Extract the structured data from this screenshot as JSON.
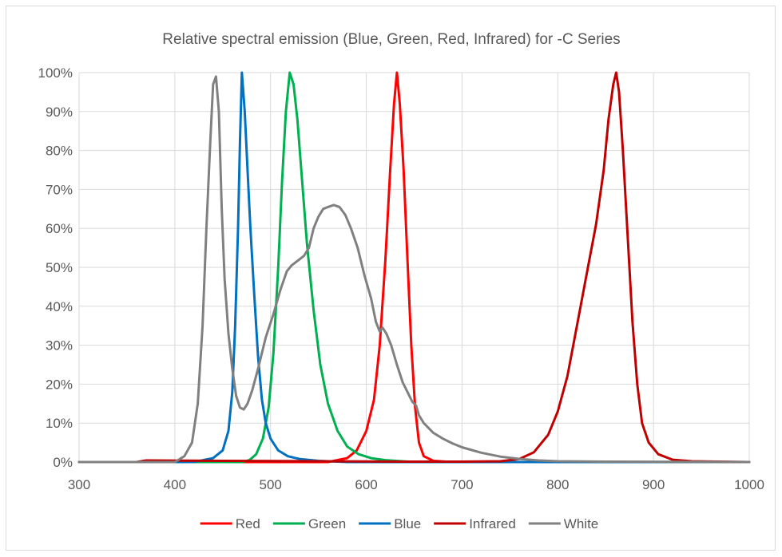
{
  "chart_data": {
    "type": "line",
    "title": "Relative spectral emission (Blue, Green, Red, Infrared) for -C Series",
    "xlabel": "",
    "ylabel": "",
    "xlim": [
      300,
      1000
    ],
    "ylim": [
      0,
      100
    ],
    "x_ticks": [
      "300",
      "400",
      "500",
      "600",
      "700",
      "800",
      "900",
      "1000"
    ],
    "y_ticks": [
      "0%",
      "10%",
      "20%",
      "30%",
      "40%",
      "50%",
      "60%",
      "70%",
      "80%",
      "90%",
      "100%"
    ],
    "grid": "vertical-and-horizontal",
    "legend_position": "bottom",
    "series": [
      {
        "name": "Red",
        "color": "#ff0000",
        "points": [
          [
            300,
            0
          ],
          [
            560,
            0
          ],
          [
            580,
            1
          ],
          [
            590,
            3
          ],
          [
            600,
            8
          ],
          [
            608,
            16
          ],
          [
            614,
            30
          ],
          [
            620,
            52
          ],
          [
            625,
            75
          ],
          [
            629,
            92
          ],
          [
            632,
            100
          ],
          [
            635,
            92
          ],
          [
            639,
            75
          ],
          [
            643,
            52
          ],
          [
            647,
            30
          ],
          [
            651,
            14
          ],
          [
            655,
            5
          ],
          [
            660,
            1.5
          ],
          [
            670,
            0.3
          ],
          [
            690,
            0
          ],
          [
            1000,
            0
          ]
        ]
      },
      {
        "name": "Green",
        "color": "#00b050",
        "points": [
          [
            300,
            0
          ],
          [
            470,
            0
          ],
          [
            478,
            0.5
          ],
          [
            485,
            2
          ],
          [
            492,
            6
          ],
          [
            498,
            14
          ],
          [
            503,
            28
          ],
          [
            508,
            50
          ],
          [
            512,
            72
          ],
          [
            516,
            90
          ],
          [
            520,
            100
          ],
          [
            524,
            97
          ],
          [
            528,
            88
          ],
          [
            533,
            72
          ],
          [
            538,
            56
          ],
          [
            545,
            39
          ],
          [
            552,
            25
          ],
          [
            560,
            15
          ],
          [
            570,
            8
          ],
          [
            580,
            4
          ],
          [
            592,
            2
          ],
          [
            605,
            1
          ],
          [
            620,
            0.5
          ],
          [
            650,
            0
          ],
          [
            1000,
            0
          ]
        ]
      },
      {
        "name": "Blue",
        "color": "#0070c0",
        "points": [
          [
            300,
            0
          ],
          [
            420,
            0
          ],
          [
            440,
            1
          ],
          [
            450,
            3
          ],
          [
            456,
            8
          ],
          [
            460,
            18
          ],
          [
            463,
            35
          ],
          [
            466,
            60
          ],
          [
            468,
            82
          ],
          [
            470,
            100
          ],
          [
            473,
            90
          ],
          [
            476,
            75
          ],
          [
            479,
            60
          ],
          [
            483,
            43
          ],
          [
            487,
            27
          ],
          [
            491,
            16
          ],
          [
            495,
            10
          ],
          [
            500,
            6
          ],
          [
            508,
            3
          ],
          [
            518,
            1.5
          ],
          [
            530,
            0.8
          ],
          [
            550,
            0.3
          ],
          [
            580,
            0
          ],
          [
            1000,
            0
          ]
        ]
      },
      {
        "name": "Infrared",
        "color": "#c00000",
        "points": [
          [
            300,
            0
          ],
          [
            360,
            0
          ],
          [
            370,
            0.4
          ],
          [
            450,
            0.3
          ],
          [
            550,
            0.2
          ],
          [
            650,
            0.1
          ],
          [
            700,
            0.1
          ],
          [
            740,
            0.2
          ],
          [
            760,
            0.8
          ],
          [
            775,
            2.5
          ],
          [
            790,
            7
          ],
          [
            800,
            13
          ],
          [
            810,
            22
          ],
          [
            820,
            35
          ],
          [
            830,
            48
          ],
          [
            840,
            61
          ],
          [
            848,
            75
          ],
          [
            853,
            88
          ],
          [
            858,
            97
          ],
          [
            861,
            100
          ],
          [
            864,
            95
          ],
          [
            868,
            80
          ],
          [
            873,
            58
          ],
          [
            878,
            36
          ],
          [
            883,
            20
          ],
          [
            888,
            10
          ],
          [
            895,
            5
          ],
          [
            905,
            2
          ],
          [
            920,
            0.6
          ],
          [
            940,
            0.2
          ],
          [
            1000,
            0
          ]
        ]
      },
      {
        "name": "White",
        "color": "#808080",
        "points": [
          [
            300,
            0
          ],
          [
            400,
            0
          ],
          [
            410,
            1.5
          ],
          [
            418,
            5
          ],
          [
            424,
            15
          ],
          [
            429,
            35
          ],
          [
            433,
            60
          ],
          [
            437,
            82
          ],
          [
            440,
            97
          ],
          [
            443,
            99
          ],
          [
            446,
            90
          ],
          [
            449,
            65
          ],
          [
            452,
            47
          ],
          [
            456,
            33
          ],
          [
            460,
            24
          ],
          [
            464,
            17
          ],
          [
            468,
            14
          ],
          [
            472,
            13.5
          ],
          [
            476,
            15
          ],
          [
            481,
            18.5
          ],
          [
            487,
            24
          ],
          [
            495,
            32
          ],
          [
            503,
            38
          ],
          [
            510,
            44
          ],
          [
            517,
            49
          ],
          [
            522,
            50.5
          ],
          [
            530,
            52
          ],
          [
            535,
            53
          ],
          [
            540,
            55
          ],
          [
            545,
            60
          ],
          [
            550,
            63
          ],
          [
            555,
            65
          ],
          [
            560,
            65.5
          ],
          [
            566,
            66
          ],
          [
            572,
            65.5
          ],
          [
            578,
            63.5
          ],
          [
            584,
            60
          ],
          [
            591,
            55
          ],
          [
            598,
            48
          ],
          [
            605,
            42
          ],
          [
            610,
            36
          ],
          [
            614,
            33.5
          ],
          [
            617,
            34.5
          ],
          [
            621,
            33
          ],
          [
            626,
            30
          ],
          [
            632,
            25
          ],
          [
            638,
            20.5
          ],
          [
            643,
            18
          ],
          [
            648,
            15.5
          ],
          [
            652,
            14.5
          ],
          [
            655,
            12
          ],
          [
            660,
            10
          ],
          [
            670,
            7.5
          ],
          [
            680,
            6
          ],
          [
            690,
            4.8
          ],
          [
            700,
            3.8
          ],
          [
            720,
            2.4
          ],
          [
            740,
            1.4
          ],
          [
            760,
            0.8
          ],
          [
            780,
            0.4
          ],
          [
            800,
            0.2
          ],
          [
            850,
            0.1
          ],
          [
            1000,
            0
          ]
        ]
      }
    ]
  }
}
